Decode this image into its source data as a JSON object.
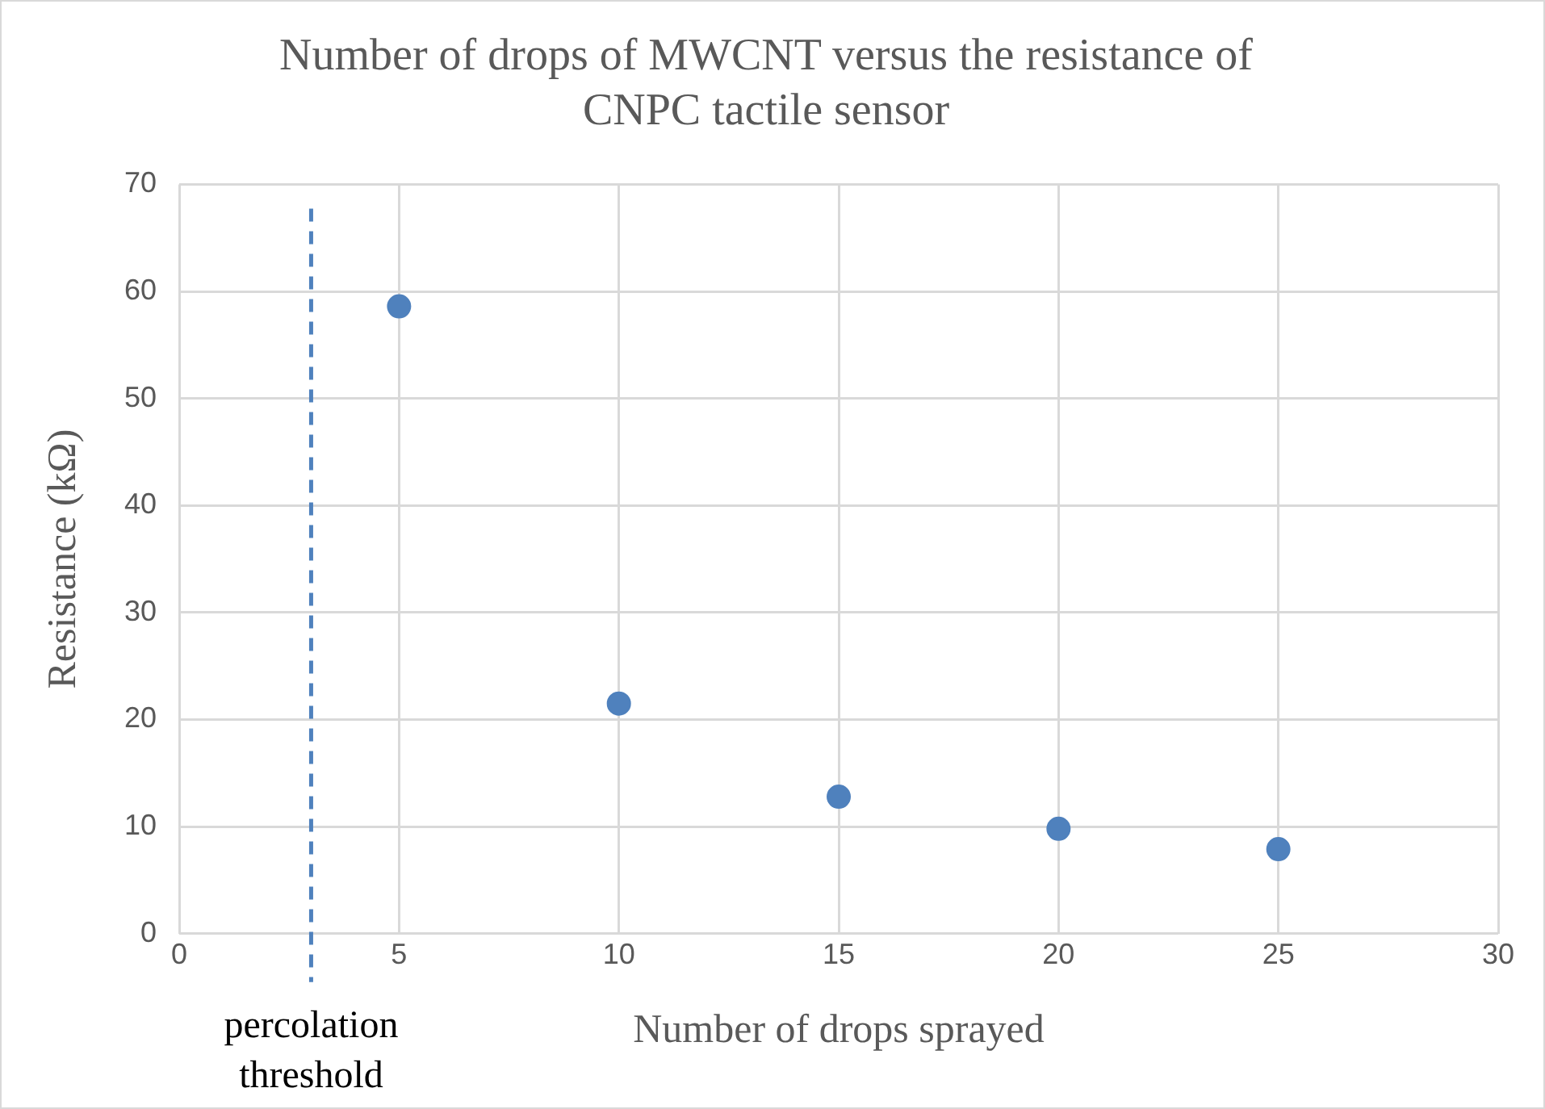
{
  "chart_data": {
    "type": "scatter",
    "title": "Number of drops of MWCNT versus the resistance of CNPC tactile sensor",
    "xlabel": "Number of drops sprayed",
    "ylabel": "Resistance (kΩ)",
    "x": [
      5,
      10,
      15,
      20,
      25
    ],
    "series": [
      {
        "color": "#4f81bd",
        "values": [
          58.6,
          21.5,
          12.8,
          9.8,
          7.9
        ]
      }
    ],
    "xlim": [
      0,
      30
    ],
    "xticks": [
      0,
      5,
      10,
      15,
      20,
      25,
      30
    ],
    "ylim": [
      0,
      70
    ],
    "yticks": [
      0,
      10,
      20,
      30,
      40,
      50,
      60,
      70
    ],
    "grid": true,
    "legend": false,
    "marker": "circle",
    "ref_lines": [
      {
        "axis": "x",
        "value": 3,
        "label": "percolation threshold",
        "color": "#4f81bd",
        "line_style": "dashed"
      }
    ]
  }
}
